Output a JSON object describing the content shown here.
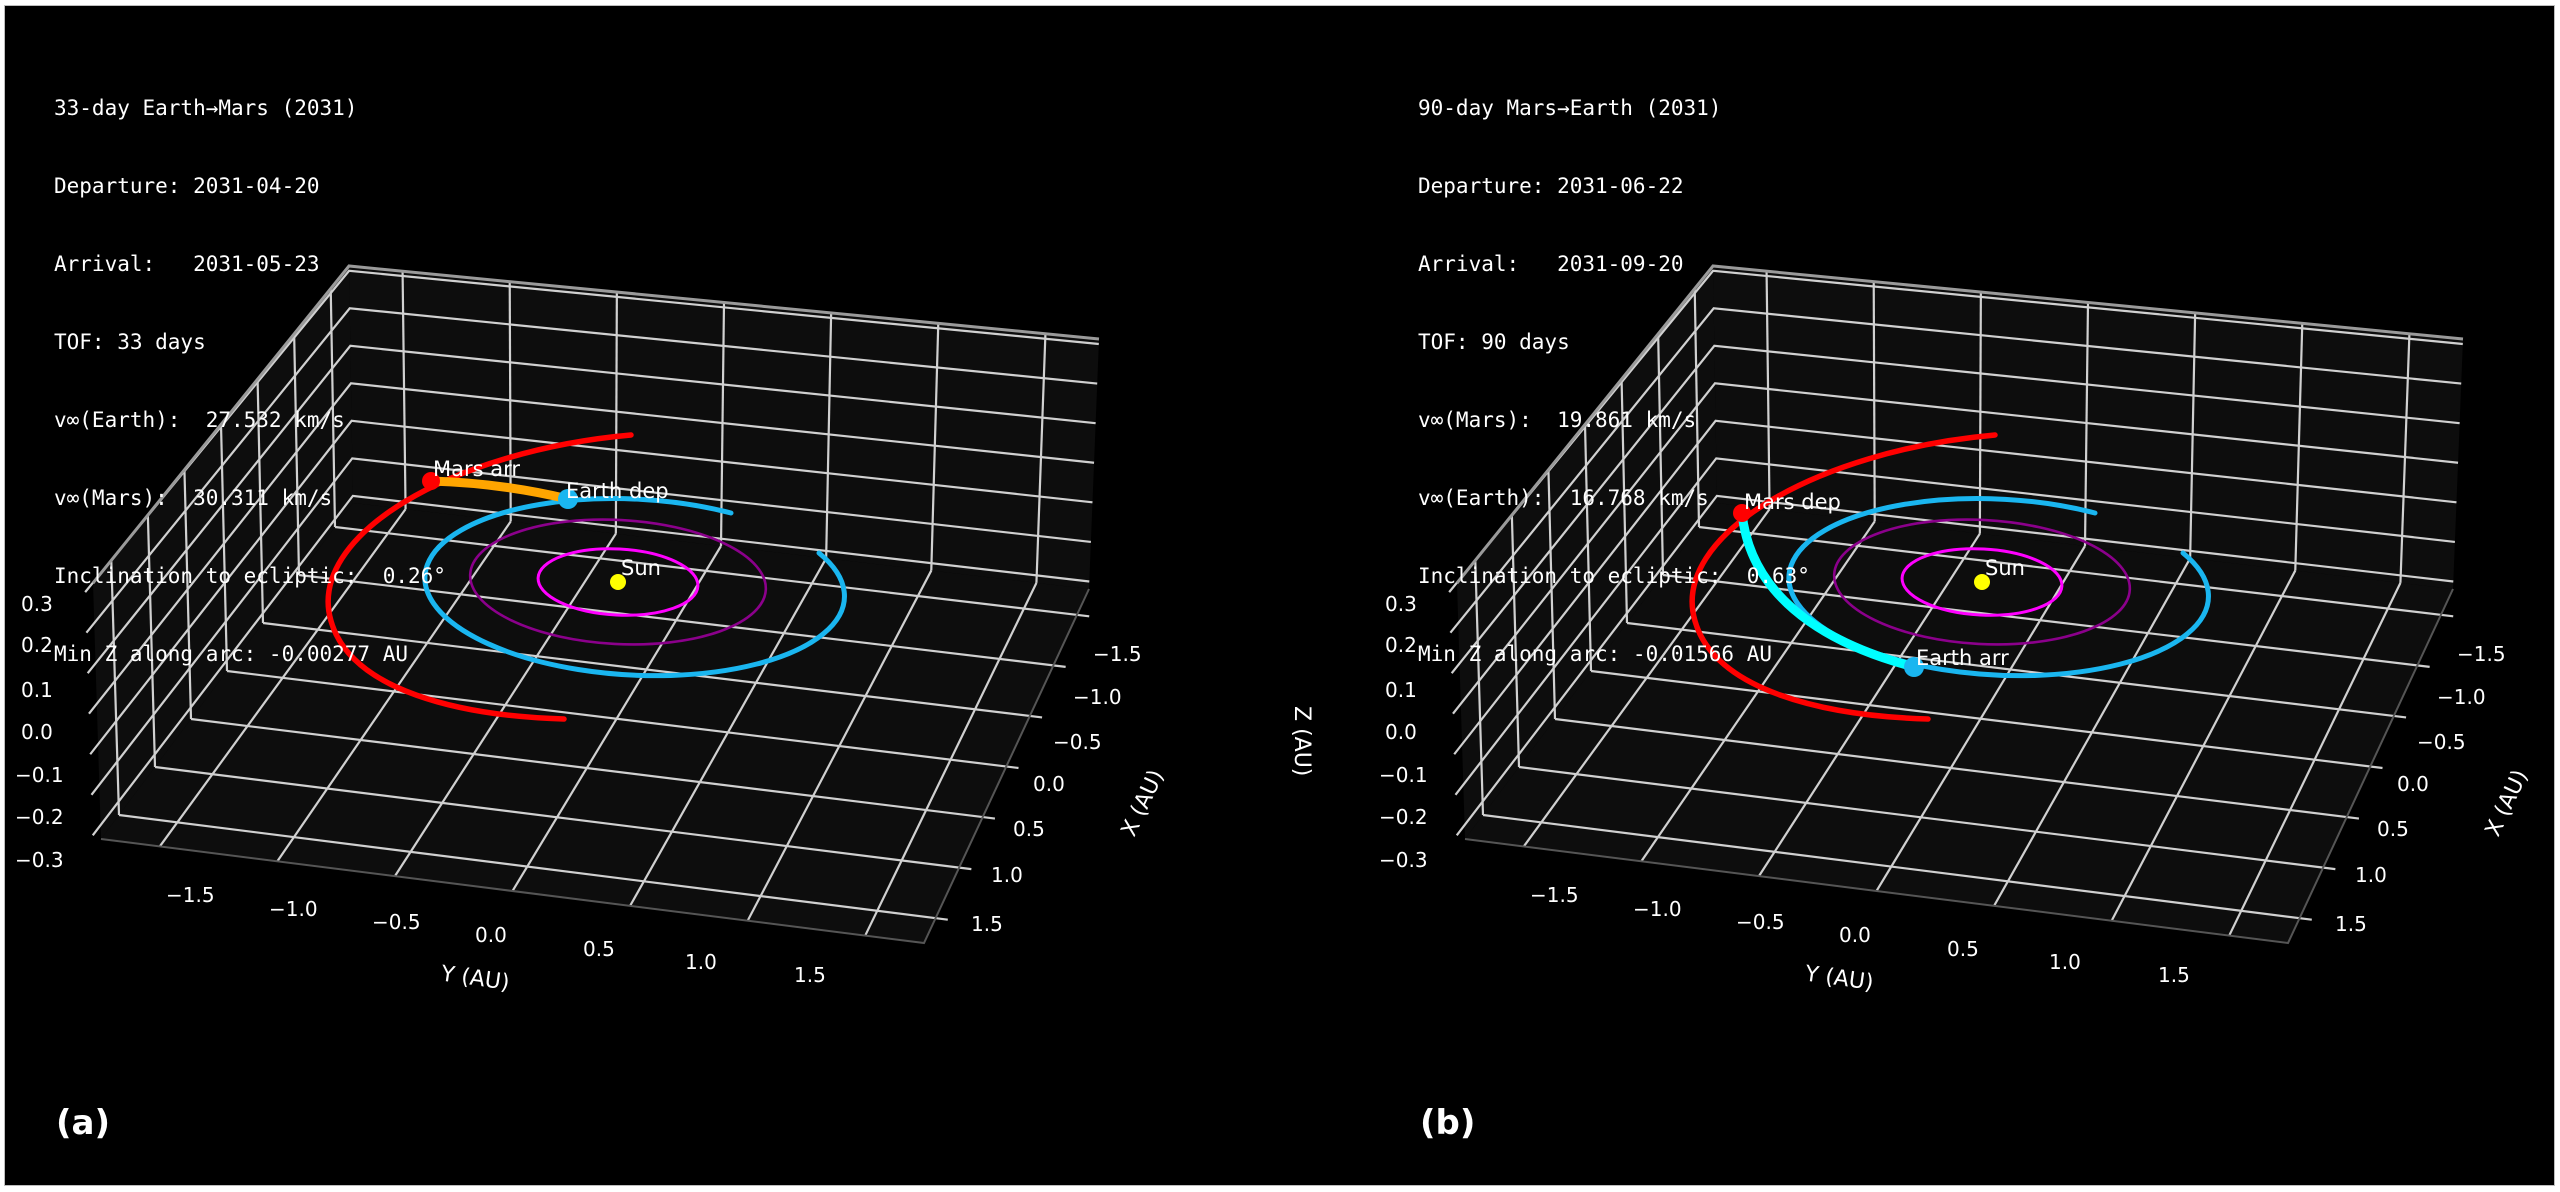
{
  "figure": {
    "background": "#000000",
    "pane_color": "#0d0d0d",
    "grid_color": "#d0d0d0",
    "shared_zlabel": "Z (AU)"
  },
  "colors": {
    "sun": "#ffff00",
    "mercury_orbit": "#ff00ff",
    "venus_orbit": "#8b008b",
    "earth_orbit": "#1ab6f0",
    "mars_orbit": "#ff0000",
    "transfer_a": "#ffa500",
    "transfer_b": "#00ffff",
    "text": "#ffffff"
  },
  "panels": [
    {
      "id": "a",
      "panel_label": "(a)",
      "info": {
        "title": "33-day Earth→Mars (2031)",
        "departure": "Departure: 2031-04-20",
        "arrival": "Arrival:   2031-05-23",
        "tof": "TOF: 33 days",
        "vinf_1": "v∞(Earth):  27.532 km/s",
        "vinf_2": "v∞(Mars):  30.311 km/s",
        "inclination": "Inclination to ecliptic:  0.26°",
        "min_z": "Min Z along arc: -0.00277 AU"
      },
      "labels": {
        "sun": "Sun",
        "dep": "Earth dep",
        "arr": "Mars arr"
      },
      "xlabel": "X (AU)",
      "ylabel": "Y (AU)",
      "zlabel": ""
    },
    {
      "id": "b",
      "panel_label": "(b)",
      "info": {
        "title": "90-day Mars→Earth (2031)",
        "departure": "Departure: 2031-06-22",
        "arrival": "Arrival:   2031-09-20",
        "tof": "TOF: 90 days",
        "vinf_1": "v∞(Mars):  19.861 km/s",
        "vinf_2": "v∞(Earth):  16.768 km/s",
        "inclination": "Inclination to ecliptic:  0.63°",
        "min_z": "Min Z along arc: -0.01566 AU"
      },
      "labels": {
        "sun": "Sun",
        "dep": "Mars dep",
        "arr": "Earth arr"
      },
      "xlabel": "X (AU)",
      "ylabel": "Y (AU)",
      "zlabel": "Z (AU)"
    }
  ],
  "chart_data": [
    {
      "type": "scatter",
      "title": "33-day Earth→Mars (2031)",
      "projection": "3d",
      "xlabel": "X (AU)",
      "ylabel": "Y (AU)",
      "zlabel": "Z (AU)",
      "xlim": [
        -1.75,
        1.75
      ],
      "ylim": [
        -1.75,
        1.75
      ],
      "zlim": [
        -0.3,
        0.3
      ],
      "x_ticks": [
        "−1.5",
        "−1.0",
        "−0.5",
        "0.0",
        "0.5",
        "1.0",
        "1.5"
      ],
      "y_ticks": [
        "−1.5",
        "−1.0",
        "−0.5",
        "0.0",
        "0.5",
        "1.0",
        "1.5"
      ],
      "z_ticks": [
        "0.3",
        "0.2",
        "0.1",
        "0.0",
        "−0.1",
        "−0.2",
        "−0.3"
      ],
      "grid": true,
      "series": [
        {
          "name": "Sun",
          "type": "point",
          "x": 0,
          "y": 0,
          "z": 0,
          "color": "#ffff00"
        },
        {
          "name": "Mercury orbit",
          "type": "orbit",
          "radius_au": 0.39,
          "color": "#ff00ff"
        },
        {
          "name": "Venus orbit",
          "type": "orbit",
          "radius_au": 0.72,
          "color": "#8b008b"
        },
        {
          "name": "Earth orbit",
          "type": "orbit-arc",
          "radius_au": 1.0,
          "color": "#1ab6f0"
        },
        {
          "name": "Mars orbit",
          "type": "orbit-arc",
          "radius_au": 1.52,
          "color": "#ff0000"
        },
        {
          "name": "Transfer arc",
          "type": "arc",
          "from": "Earth dep",
          "to": "Mars arr",
          "color": "#ffa500"
        }
      ],
      "annotations": [
        "Sun",
        "Earth dep",
        "Mars arr"
      ],
      "stats": {
        "departure": "2031-04-20",
        "arrival": "2031-05-23",
        "tof_days": 33,
        "vinf_earth_kms": 27.532,
        "vinf_mars_kms": 30.311,
        "inclination_deg": 0.26,
        "min_z_au": -0.00277
      }
    },
    {
      "type": "scatter",
      "title": "90-day Mars→Earth (2031)",
      "projection": "3d",
      "xlabel": "X (AU)",
      "ylabel": "Y (AU)",
      "zlabel": "Z (AU)",
      "xlim": [
        -1.75,
        1.75
      ],
      "ylim": [
        -1.75,
        1.75
      ],
      "zlim": [
        -0.3,
        0.3
      ],
      "x_ticks": [
        "−1.5",
        "−1.0",
        "−0.5",
        "0.0",
        "0.5",
        "1.0",
        "1.5"
      ],
      "y_ticks": [
        "−1.5",
        "−1.0",
        "−0.5",
        "0.0",
        "0.5",
        "1.0",
        "1.5"
      ],
      "z_ticks": [
        "0.3",
        "0.2",
        "0.1",
        "0.0",
        "−0.1",
        "−0.2",
        "−0.3"
      ],
      "grid": true,
      "series": [
        {
          "name": "Sun",
          "type": "point",
          "x": 0,
          "y": 0,
          "z": 0,
          "color": "#ffff00"
        },
        {
          "name": "Mercury orbit",
          "type": "orbit",
          "radius_au": 0.39,
          "color": "#ff00ff"
        },
        {
          "name": "Venus orbit",
          "type": "orbit",
          "radius_au": 0.72,
          "color": "#8b008b"
        },
        {
          "name": "Earth orbit",
          "type": "orbit-arc",
          "radius_au": 1.0,
          "color": "#1ab6f0"
        },
        {
          "name": "Mars orbit",
          "type": "orbit-arc",
          "radius_au": 1.52,
          "color": "#ff0000"
        },
        {
          "name": "Transfer arc",
          "type": "arc",
          "from": "Mars dep",
          "to": "Earth arr",
          "color": "#00ffff"
        }
      ],
      "annotations": [
        "Sun",
        "Mars dep",
        "Earth arr"
      ],
      "stats": {
        "departure": "2031-06-22",
        "arrival": "2031-09-20",
        "tof_days": 90,
        "vinf_mars_kms": 19.861,
        "vinf_earth_kms": 16.768,
        "inclination_deg": 0.63,
        "min_z_au": -0.01566
      }
    }
  ]
}
